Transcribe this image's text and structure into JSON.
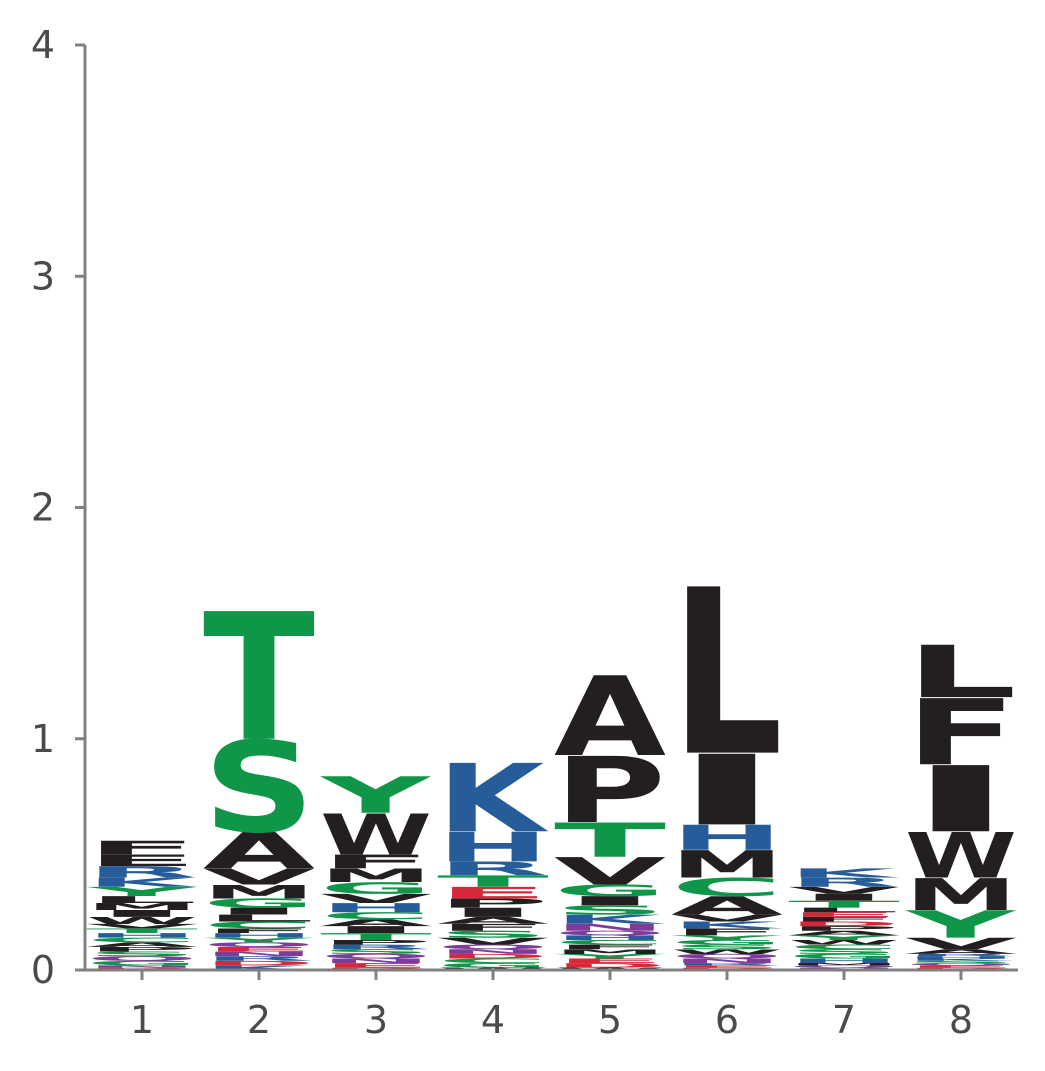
{
  "chart_data": {
    "type": "sequence-logo",
    "title": "",
    "xlabel": "",
    "ylabel": "",
    "ylim": [
      0,
      4
    ],
    "yticks": [
      0,
      1,
      2,
      3,
      4
    ],
    "y_tick_labels": [
      "0",
      "1",
      "2",
      "3",
      "4"
    ],
    "x_tick_labels": [
      "1",
      "2",
      "3",
      "4",
      "5",
      "6",
      "7",
      "8"
    ],
    "colors": {
      "hydrophobic": "#231f20",
      "polar": "#109648",
      "basic": "#255c99",
      "acidic": "#d62839",
      "amide": "#7d3c98",
      "axis": "#808080",
      "tick_text": "#4a4a4a"
    },
    "positions": [
      {
        "position": "1",
        "letters": [
          {
            "aa": "D",
            "height": 0.01,
            "class": "acidic"
          },
          {
            "aa": "N",
            "height": 0.01,
            "class": "amide"
          },
          {
            "aa": "G",
            "height": 0.02,
            "class": "polar"
          },
          {
            "aa": "Q",
            "height": 0.02,
            "class": "amide"
          },
          {
            "aa": "S",
            "height": 0.02,
            "class": "polar"
          },
          {
            "aa": "P",
            "height": 0.02,
            "class": "hydrophobic"
          },
          {
            "aa": "A",
            "height": 0.02,
            "class": "hydrophobic"
          },
          {
            "aa": "C",
            "height": 0.02,
            "class": "polar"
          },
          {
            "aa": "H",
            "height": 0.02,
            "class": "basic"
          },
          {
            "aa": "T",
            "height": 0.02,
            "class": "polar"
          },
          {
            "aa": "V",
            "height": 0.02,
            "class": "hydrophobic"
          },
          {
            "aa": "W",
            "height": 0.03,
            "class": "hydrophobic"
          },
          {
            "aa": "I",
            "height": 0.03,
            "class": "hydrophobic"
          },
          {
            "aa": "M",
            "height": 0.03,
            "class": "hydrophobic"
          },
          {
            "aa": "L",
            "height": 0.03,
            "class": "hydrophobic"
          },
          {
            "aa": "Y",
            "height": 0.04,
            "class": "polar"
          },
          {
            "aa": "K",
            "height": 0.04,
            "class": "basic"
          },
          {
            "aa": "R",
            "height": 0.05,
            "class": "basic"
          },
          {
            "aa": "E",
            "height": 0.05,
            "class": "hydrophobic"
          },
          {
            "aa": "F",
            "height": 0.06,
            "class": "hydrophobic"
          }
        ]
      },
      {
        "position": "2",
        "letters": [
          {
            "aa": "K",
            "height": 0.02,
            "class": "basic"
          },
          {
            "aa": "D",
            "height": 0.02,
            "class": "acidic"
          },
          {
            "aa": "R",
            "height": 0.02,
            "class": "basic"
          },
          {
            "aa": "N",
            "height": 0.02,
            "class": "amide"
          },
          {
            "aa": "E",
            "height": 0.02,
            "class": "acidic"
          },
          {
            "aa": "Q",
            "height": 0.02,
            "class": "amide"
          },
          {
            "aa": "Y",
            "height": 0.02,
            "class": "polar"
          },
          {
            "aa": "H",
            "height": 0.02,
            "class": "basic"
          },
          {
            "aa": "F",
            "height": 0.02,
            "class": "hydrophobic"
          },
          {
            "aa": "C",
            "height": 0.03,
            "class": "polar"
          },
          {
            "aa": "L",
            "height": 0.03,
            "class": "hydrophobic"
          },
          {
            "aa": "I",
            "height": 0.03,
            "class": "hydrophobic"
          },
          {
            "aa": "G",
            "height": 0.04,
            "class": "polar"
          },
          {
            "aa": "M",
            "height": 0.06,
            "class": "hydrophobic"
          },
          {
            "aa": "V",
            "height": 0.07,
            "class": "hydrophobic"
          },
          {
            "aa": "A",
            "height": 0.16,
            "class": "hydrophobic"
          },
          {
            "aa": "S",
            "height": 0.4,
            "class": "polar"
          },
          {
            "aa": "T",
            "height": 0.56,
            "class": "polar"
          }
        ]
      },
      {
        "position": "3",
        "letters": [
          {
            "aa": "D",
            "height": 0.01,
            "class": "acidic"
          },
          {
            "aa": "E",
            "height": 0.02,
            "class": "acidic"
          },
          {
            "aa": "N",
            "height": 0.02,
            "class": "amide"
          },
          {
            "aa": "Q",
            "height": 0.02,
            "class": "amide"
          },
          {
            "aa": "S",
            "height": 0.02,
            "class": "polar"
          },
          {
            "aa": "R",
            "height": 0.02,
            "class": "basic"
          },
          {
            "aa": "P",
            "height": 0.02,
            "class": "hydrophobic"
          },
          {
            "aa": "T",
            "height": 0.03,
            "class": "polar"
          },
          {
            "aa": "I",
            "height": 0.03,
            "class": "hydrophobic"
          },
          {
            "aa": "A",
            "height": 0.03,
            "class": "hydrophobic"
          },
          {
            "aa": "C",
            "height": 0.03,
            "class": "polar"
          },
          {
            "aa": "H",
            "height": 0.04,
            "class": "basic"
          },
          {
            "aa": "V",
            "height": 0.04,
            "class": "hydrophobic"
          },
          {
            "aa": "G",
            "height": 0.05,
            "class": "polar"
          },
          {
            "aa": "M",
            "height": 0.06,
            "class": "hydrophobic"
          },
          {
            "aa": "F",
            "height": 0.06,
            "class": "hydrophobic"
          },
          {
            "aa": "W",
            "height": 0.18,
            "class": "hydrophobic"
          },
          {
            "aa": "Y",
            "height": 0.16,
            "class": "polar"
          }
        ]
      },
      {
        "position": "4",
        "letters": [
          {
            "aa": "W",
            "height": 0.01,
            "class": "hydrophobic"
          },
          {
            "aa": "G",
            "height": 0.02,
            "class": "polar"
          },
          {
            "aa": "C",
            "height": 0.02,
            "class": "polar"
          },
          {
            "aa": "D",
            "height": 0.02,
            "class": "acidic"
          },
          {
            "aa": "N",
            "height": 0.02,
            "class": "amide"
          },
          {
            "aa": "Q",
            "height": 0.02,
            "class": "amide"
          },
          {
            "aa": "V",
            "height": 0.03,
            "class": "hydrophobic"
          },
          {
            "aa": "S",
            "height": 0.03,
            "class": "polar"
          },
          {
            "aa": "F",
            "height": 0.03,
            "class": "hydrophobic"
          },
          {
            "aa": "A",
            "height": 0.03,
            "class": "hydrophobic"
          },
          {
            "aa": "I",
            "height": 0.04,
            "class": "hydrophobic"
          },
          {
            "aa": "P",
            "height": 0.04,
            "class": "hydrophobic"
          },
          {
            "aa": "E",
            "height": 0.05,
            "class": "acidic"
          },
          {
            "aa": "T",
            "height": 0.05,
            "class": "polar"
          },
          {
            "aa": "R",
            "height": 0.06,
            "class": "basic"
          },
          {
            "aa": "H",
            "height": 0.13,
            "class": "basic"
          },
          {
            "aa": "K",
            "height": 0.3,
            "class": "basic"
          }
        ]
      },
      {
        "position": "5",
        "letters": [
          {
            "aa": "W",
            "height": 0.01,
            "class": "hydrophobic"
          },
          {
            "aa": "D",
            "height": 0.02,
            "class": "acidic"
          },
          {
            "aa": "E",
            "height": 0.02,
            "class": "acidic"
          },
          {
            "aa": "Y",
            "height": 0.02,
            "class": "polar"
          },
          {
            "aa": "M",
            "height": 0.02,
            "class": "hydrophobic"
          },
          {
            "aa": "F",
            "height": 0.02,
            "class": "hydrophobic"
          },
          {
            "aa": "C",
            "height": 0.02,
            "class": "polar"
          },
          {
            "aa": "H",
            "height": 0.02,
            "class": "basic"
          },
          {
            "aa": "Q",
            "height": 0.02,
            "class": "amide"
          },
          {
            "aa": "N",
            "height": 0.03,
            "class": "amide"
          },
          {
            "aa": "K",
            "height": 0.04,
            "class": "basic"
          },
          {
            "aa": "S",
            "height": 0.04,
            "class": "polar"
          },
          {
            "aa": "I",
            "height": 0.04,
            "class": "hydrophobic"
          },
          {
            "aa": "G",
            "height": 0.05,
            "class": "polar"
          },
          {
            "aa": "V",
            "height": 0.12,
            "class": "hydrophobic"
          },
          {
            "aa": "T",
            "height": 0.15,
            "class": "polar"
          },
          {
            "aa": "P",
            "height": 0.29,
            "class": "hydrophobic"
          },
          {
            "aa": "A",
            "height": 0.35,
            "class": "hydrophobic"
          }
        ]
      },
      {
        "position": "6",
        "letters": [
          {
            "aa": "D",
            "height": 0.01,
            "class": "acidic"
          },
          {
            "aa": "E",
            "height": 0.01,
            "class": "acidic"
          },
          {
            "aa": "R",
            "height": 0.01,
            "class": "basic"
          },
          {
            "aa": "N",
            "height": 0.02,
            "class": "amide"
          },
          {
            "aa": "Q",
            "height": 0.02,
            "class": "amide"
          },
          {
            "aa": "W",
            "height": 0.02,
            "class": "hydrophobic"
          },
          {
            "aa": "S",
            "height": 0.02,
            "class": "polar"
          },
          {
            "aa": "G",
            "height": 0.02,
            "class": "polar"
          },
          {
            "aa": "Y",
            "height": 0.02,
            "class": "polar"
          },
          {
            "aa": "F",
            "height": 0.03,
            "class": "hydrophobic"
          },
          {
            "aa": "K",
            "height": 0.03,
            "class": "basic"
          },
          {
            "aa": "V",
            "height": 0.03,
            "class": "hydrophobic"
          },
          {
            "aa": "A",
            "height": 0.08,
            "class": "hydrophobic"
          },
          {
            "aa": "C",
            "height": 0.08,
            "class": "polar"
          },
          {
            "aa": "M",
            "height": 0.12,
            "class": "hydrophobic"
          },
          {
            "aa": "H",
            "height": 0.11,
            "class": "basic"
          },
          {
            "aa": "I",
            "height": 0.31,
            "class": "hydrophobic"
          },
          {
            "aa": "L",
            "height": 0.73,
            "class": "hydrophobic"
          }
        ]
      },
      {
        "position": "7",
        "letters": [
          {
            "aa": "N",
            "height": 0.01,
            "class": "amide"
          },
          {
            "aa": "Q",
            "height": 0.01,
            "class": "amide"
          },
          {
            "aa": "M",
            "height": 0.01,
            "class": "hydrophobic"
          },
          {
            "aa": "H",
            "height": 0.02,
            "class": "basic"
          },
          {
            "aa": "G",
            "height": 0.02,
            "class": "polar"
          },
          {
            "aa": "S",
            "height": 0.02,
            "class": "polar"
          },
          {
            "aa": "C",
            "height": 0.02,
            "class": "polar"
          },
          {
            "aa": "W",
            "height": 0.02,
            "class": "hydrophobic"
          },
          {
            "aa": "Y",
            "height": 0.02,
            "class": "polar"
          },
          {
            "aa": "A",
            "height": 0.02,
            "class": "hydrophobic"
          },
          {
            "aa": "P",
            "height": 0.02,
            "class": "hydrophobic"
          },
          {
            "aa": "D",
            "height": 0.02,
            "class": "acidic"
          },
          {
            "aa": "F",
            "height": 0.02,
            "class": "hydrophobic"
          },
          {
            "aa": "E",
            "height": 0.02,
            "class": "acidic"
          },
          {
            "aa": "L",
            "height": 0.02,
            "class": "hydrophobic"
          },
          {
            "aa": "T",
            "height": 0.03,
            "class": "polar"
          },
          {
            "aa": "I",
            "height": 0.03,
            "class": "hydrophobic"
          },
          {
            "aa": "V",
            "height": 0.03,
            "class": "hydrophobic"
          },
          {
            "aa": "R",
            "height": 0.04,
            "class": "basic"
          },
          {
            "aa": "K",
            "height": 0.04,
            "class": "basic"
          }
        ]
      },
      {
        "position": "8",
        "letters": [
          {
            "aa": "D",
            "height": 0.01,
            "class": "acidic"
          },
          {
            "aa": "E",
            "height": 0.01,
            "class": "acidic"
          },
          {
            "aa": "Q",
            "height": 0.01,
            "class": "amide"
          },
          {
            "aa": "S",
            "height": 0.01,
            "class": "polar"
          },
          {
            "aa": "K",
            "height": 0.01,
            "class": "basic"
          },
          {
            "aa": "H",
            "height": 0.01,
            "class": "basic"
          },
          {
            "aa": "R",
            "height": 0.01,
            "class": "basic"
          },
          {
            "aa": "A",
            "height": 0.02,
            "class": "hydrophobic"
          },
          {
            "aa": "V",
            "height": 0.05,
            "class": "hydrophobic"
          },
          {
            "aa": "Y",
            "height": 0.12,
            "class": "polar"
          },
          {
            "aa": "M",
            "height": 0.14,
            "class": "hydrophobic"
          },
          {
            "aa": "W",
            "height": 0.2,
            "class": "hydrophobic"
          },
          {
            "aa": "I",
            "height": 0.29,
            "class": "hydrophobic"
          },
          {
            "aa": "F",
            "height": 0.29,
            "class": "hydrophobic"
          },
          {
            "aa": "L",
            "height": 0.23,
            "class": "hydrophobic"
          }
        ]
      }
    ]
  }
}
